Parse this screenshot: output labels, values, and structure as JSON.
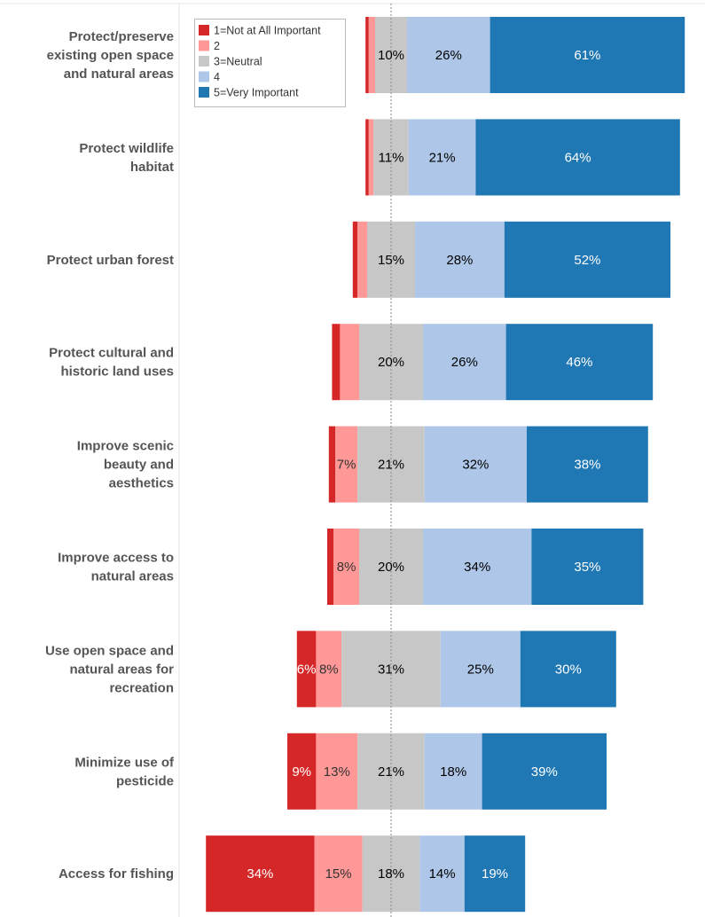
{
  "chart_data": {
    "type": "bar",
    "orientation": "horizontal-diverging-stacked",
    "title": "",
    "xlabel": "",
    "ylabel": "",
    "categories": [
      "Protect/preserve existing open space and natural areas",
      "Protect wildlife habitat",
      "Protect urban forest",
      "Protect cultural and historic land uses",
      "Improve scenic beauty and aesthetics",
      "Improve access to natural areas",
      "Use open space and natural areas for recreation",
      "Minimize use of pesticide",
      "Access for fishing"
    ],
    "category_lines": [
      [
        "Protect/preserve",
        "existing open space",
        "and natural areas"
      ],
      [
        "Protect wildlife",
        "habitat"
      ],
      [
        "Protect urban forest"
      ],
      [
        "Protect cultural and",
        "historic land uses"
      ],
      [
        "Improve scenic",
        "beauty and",
        "aesthetics"
      ],
      [
        "Improve access to",
        "natural areas"
      ],
      [
        "Use open space and",
        "natural areas for",
        "recreation"
      ],
      [
        "Minimize use of",
        "pesticide"
      ],
      [
        "Access for fishing"
      ]
    ],
    "series": [
      {
        "name": "1=Not at All Important",
        "color": "#d62728",
        "text_color": "#ffffff",
        "values": [
          1,
          1,
          1.5,
          2.5,
          2,
          2,
          6,
          9,
          34
        ],
        "labels": [
          "",
          "",
          "",
          "",
          "",
          "",
          "6%",
          "9%",
          "34%"
        ]
      },
      {
        "name": "2",
        "color": "#ff9896",
        "text_color": "#333333",
        "values": [
          2,
          1.5,
          3,
          6,
          7,
          8,
          8,
          13,
          15
        ],
        "labels": [
          "",
          "",
          "",
          "",
          "7%",
          "8%",
          "8%",
          "13%",
          "15%"
        ]
      },
      {
        "name": "3=Neutral",
        "color": "#c7c7c7",
        "text_color": "#000000",
        "values": [
          10,
          11,
          15,
          20,
          21,
          20,
          31,
          21,
          18
        ],
        "labels": [
          "10%",
          "11%",
          "15%",
          "20%",
          "21%",
          "20%",
          "31%",
          "21%",
          "18%"
        ]
      },
      {
        "name": "4",
        "color": "#aec7e8",
        "text_color": "#000000",
        "values": [
          26,
          21,
          28,
          26,
          32,
          34,
          25,
          18,
          14
        ],
        "labels": [
          "26%",
          "21%",
          "28%",
          "26%",
          "32%",
          "34%",
          "25%",
          "18%",
          "14%"
        ]
      },
      {
        "name": "5=Very Important",
        "color": "#1f77b4",
        "text_color": "#ffffff",
        "values": [
          61,
          64,
          52,
          46,
          38,
          35,
          30,
          39,
          19
        ],
        "labels": [
          "61%",
          "64%",
          "52%",
          "46%",
          "38%",
          "35%",
          "30%",
          "39%",
          "19%"
        ]
      }
    ],
    "center": "midpoint of 3=Neutral",
    "grid": false,
    "legend_position": "top-left"
  }
}
